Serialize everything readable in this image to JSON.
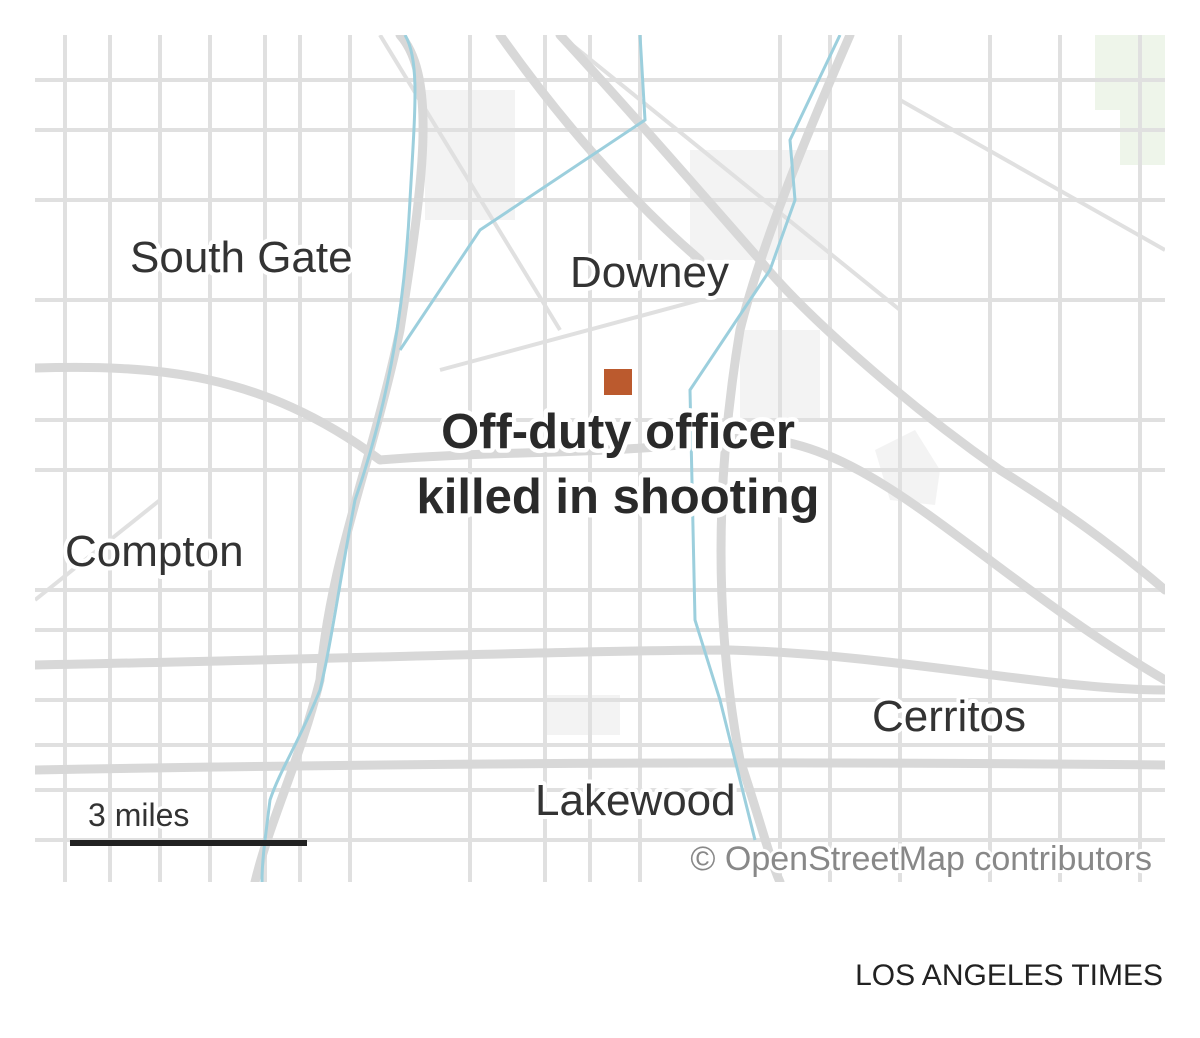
{
  "map": {
    "places": [
      "South Gate",
      "Downey",
      "Compton",
      "Cerritos",
      "Lakewood"
    ],
    "headline": [
      "Off-duty officer",
      "killed in shooting"
    ],
    "scale_label": "3 miles",
    "attribution": "© OpenStreetMap contributors"
  },
  "credit": "LOS ANGELES TIMES"
}
